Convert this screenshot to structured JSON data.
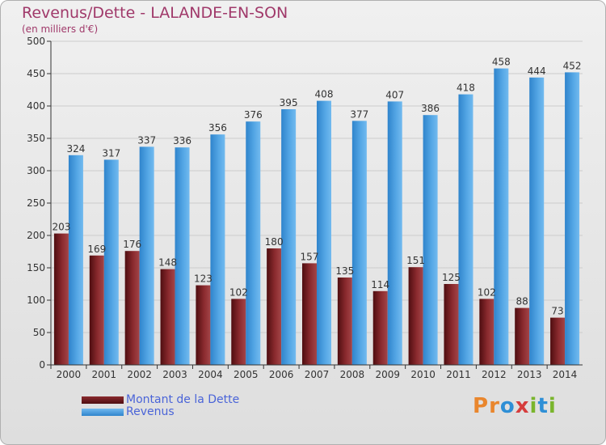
{
  "title": "Revenus/Dette - LALANDE-EN-SON",
  "subtitle": "(en milliers d'€)",
  "logo": {
    "text": "Proxiti",
    "letters": [
      {
        "ch": "P",
        "color": "#e9862d"
      },
      {
        "ch": "r",
        "color": "#e9862d"
      },
      {
        "ch": "o",
        "color": "#2e8fd6"
      },
      {
        "ch": "x",
        "color": "#d63d3d"
      },
      {
        "ch": "i",
        "color": "#7ab52d"
      },
      {
        "ch": "t",
        "color": "#2e8fd6"
      },
      {
        "ch": "i",
        "color": "#7ab52d"
      }
    ]
  },
  "colors": {
    "dette": "#7a1f22",
    "revenus": "#4a9ee0",
    "axis": "#333333",
    "grid": "#cccccc"
  },
  "legend": {
    "items": [
      {
        "label": "Montant de la Dette",
        "color": "#7a1f22"
      },
      {
        "label": "Revenus",
        "color": "#4a9ee0"
      }
    ]
  },
  "chart_data": {
    "type": "bar",
    "title": "Revenus/Dette - LALANDE-EN-SON",
    "ylabel": "(en milliers d'€)",
    "ylim": [
      0,
      500
    ],
    "yticks": [
      0,
      50,
      100,
      150,
      200,
      250,
      300,
      350,
      400,
      450,
      500
    ],
    "grid": true,
    "legend_position": "bottom-left",
    "categories": [
      "2000",
      "2001",
      "2002",
      "2003",
      "2004",
      "2005",
      "2006",
      "2007",
      "2008",
      "2009",
      "2010",
      "2011",
      "2012",
      "2013",
      "2014"
    ],
    "series": [
      {
        "name": "Montant de la Dette",
        "values": [
          203,
          169,
          176,
          148,
          123,
          102,
          180,
          157,
          135,
          114,
          151,
          125,
          102,
          88,
          73
        ]
      },
      {
        "name": "Revenus",
        "values": [
          324,
          317,
          337,
          336,
          356,
          376,
          395,
          408,
          377,
          407,
          386,
          418,
          458,
          444,
          452
        ]
      }
    ]
  }
}
